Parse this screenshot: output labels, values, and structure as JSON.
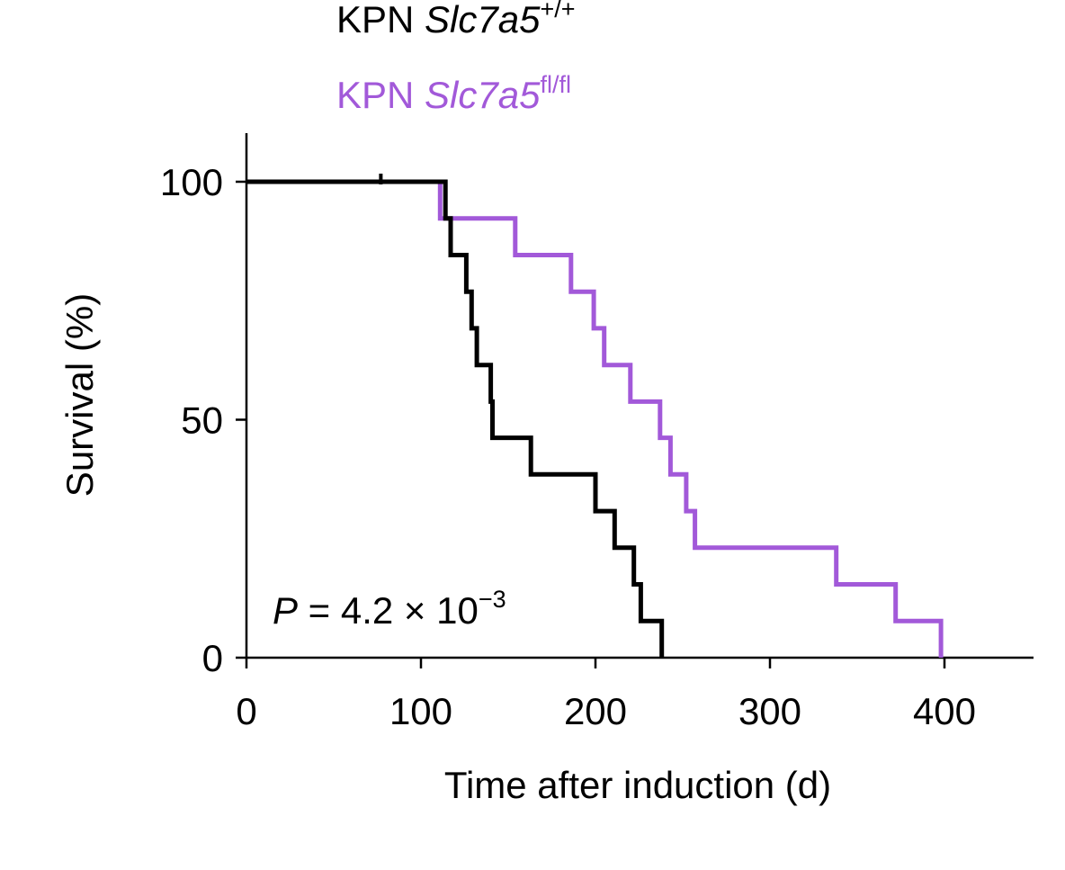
{
  "chart_data": {
    "type": "line",
    "subtype": "kaplan-meier-step",
    "xlabel": "Time after induction (d)",
    "ylabel": "Survival (%)",
    "xlim": [
      0,
      450
    ],
    "ylim": [
      0,
      100
    ],
    "xticks": [
      "0",
      "100",
      "200",
      "300",
      "400"
    ],
    "xtick_values": [
      0,
      100,
      200,
      300,
      400
    ],
    "yticks": [
      "0",
      "50",
      "100"
    ],
    "ytick_values": [
      0,
      50,
      100
    ],
    "grid": false,
    "legend_position": "top-left",
    "series": [
      {
        "name_main": "KPN ",
        "name_gene": "Slc7a5",
        "name_sup": "+/+",
        "color": "#000000",
        "steps": [
          [
            0,
            100
          ],
          [
            114,
            100
          ],
          [
            114,
            92.3
          ],
          [
            117,
            92.3
          ],
          [
            117,
            84.6
          ],
          [
            126,
            84.6
          ],
          [
            126,
            76.9
          ],
          [
            129,
            76.9
          ],
          [
            129,
            69.2
          ],
          [
            132,
            69.2
          ],
          [
            132,
            61.5
          ],
          [
            140,
            61.5
          ],
          [
            140,
            53.8
          ],
          [
            141,
            53.8
          ],
          [
            141,
            46.2
          ],
          [
            163,
            46.2
          ],
          [
            163,
            38.5
          ],
          [
            200,
            38.5
          ],
          [
            200,
            30.8
          ],
          [
            211,
            30.8
          ],
          [
            211,
            23.1
          ],
          [
            222,
            23.1
          ],
          [
            222,
            15.4
          ],
          [
            226,
            15.4
          ],
          [
            226,
            7.7
          ],
          [
            238,
            7.7
          ],
          [
            238,
            0
          ]
        ],
        "censored": [
          [
            77,
            100
          ]
        ]
      },
      {
        "name_main": "KPN ",
        "name_gene": "Slc7a5",
        "name_sup": "fl/fl",
        "color": "#a259d9",
        "steps": [
          [
            0,
            100
          ],
          [
            111,
            100
          ],
          [
            111,
            92.3
          ],
          [
            154,
            92.3
          ],
          [
            154,
            84.6
          ],
          [
            186,
            84.6
          ],
          [
            186,
            76.9
          ],
          [
            199,
            76.9
          ],
          [
            199,
            69.2
          ],
          [
            205,
            69.2
          ],
          [
            205,
            61.5
          ],
          [
            220,
            61.5
          ],
          [
            220,
            53.8
          ],
          [
            237,
            53.8
          ],
          [
            237,
            46.2
          ],
          [
            243,
            46.2
          ],
          [
            243,
            38.5
          ],
          [
            252,
            38.5
          ],
          [
            252,
            30.8
          ],
          [
            257,
            30.8
          ],
          [
            257,
            23.1
          ],
          [
            338,
            23.1
          ],
          [
            338,
            15.4
          ],
          [
            372,
            15.4
          ],
          [
            372,
            7.7
          ],
          [
            398,
            7.7
          ],
          [
            398,
            0
          ]
        ],
        "censored": []
      }
    ],
    "annotation": {
      "p_italic": "P",
      "p_text": " = 4.2 × 10",
      "p_sup": "−3"
    }
  }
}
